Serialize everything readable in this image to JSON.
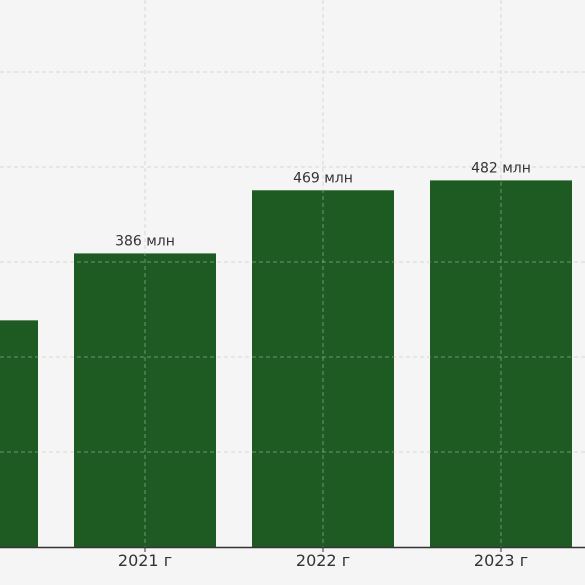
{
  "chart_data": {
    "type": "bar",
    "categories": [
      "",
      "2021 г",
      "2022 г",
      "2023 г"
    ],
    "values": [
      298,
      386,
      469,
      482
    ],
    "value_labels": [
      "",
      "386 млн",
      "469 млн",
      "482 млн"
    ],
    "unit": "млн",
    "ylim": [
      0,
      600
    ],
    "grid": true,
    "legend": "none",
    "colors": {
      "bar": "#1e5b22",
      "background": "#f5f5f5",
      "grid": "#c4c4c4",
      "axis": "#333333",
      "text": "#333333"
    }
  }
}
